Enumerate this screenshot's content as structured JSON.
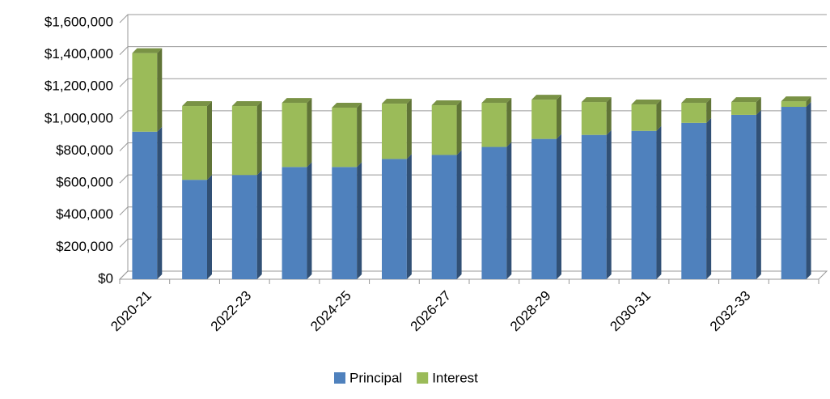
{
  "chart_data": {
    "type": "bar3d_stacked",
    "categories": [
      "2020-21",
      null,
      "2022-23",
      null,
      "2024-25",
      null,
      "2026-27",
      null,
      "2028-29",
      null,
      "2030-31",
      null,
      "2032-33",
      null
    ],
    "series": [
      {
        "name": "Principal",
        "color": "#4f81bd",
        "values": [
          920000,
          620000,
          650000,
          700000,
          700000,
          750000,
          775000,
          825000,
          875000,
          900000,
          925000,
          975000,
          1025000,
          1075000
        ]
      },
      {
        "name": "Interest",
        "color": "#9bbb59",
        "values": [
          490000,
          460000,
          430000,
          400000,
          370000,
          345000,
          310000,
          275000,
          245000,
          205000,
          165000,
          125000,
          80000,
          35000
        ]
      }
    ],
    "ylim": [
      0,
      1600000
    ],
    "yticks": [
      {
        "value": 0,
        "label": "$0"
      },
      {
        "value": 200000,
        "label": "$200,000"
      },
      {
        "value": 400000,
        "label": "$400,000"
      },
      {
        "value": 600000,
        "label": "$600,000"
      },
      {
        "value": 800000,
        "label": "$800,000"
      },
      {
        "value": 1000000,
        "label": "$1,000,000"
      },
      {
        "value": 1200000,
        "label": "$1,200,000"
      },
      {
        "value": 1400000,
        "label": "$1,400,000"
      },
      {
        "value": 1600000,
        "label": "$1,600,000"
      }
    ],
    "grid": true,
    "legend": "bottom"
  }
}
